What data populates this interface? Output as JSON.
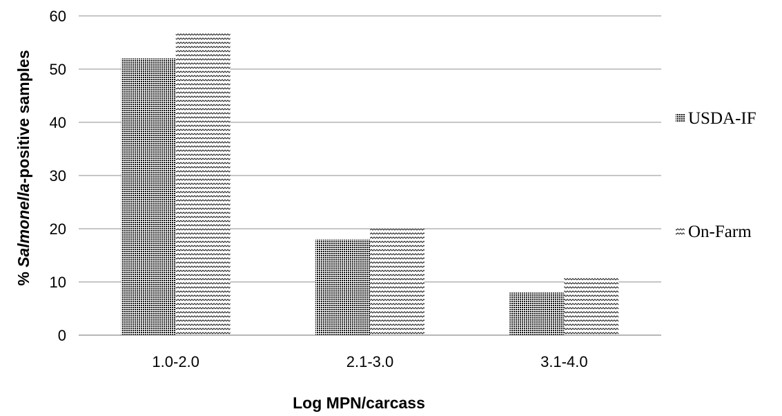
{
  "chart_data": {
    "type": "bar",
    "categories": [
      "1.0-2.0",
      "2.1-3.0",
      "3.1-4.0"
    ],
    "series": [
      {
        "name": "USDA-IF",
        "values": [
          52,
          18,
          8
        ],
        "pattern": "dots-dark"
      },
      {
        "name": "On-Farm",
        "values": [
          57,
          20,
          11
        ],
        "pattern": "zigzag"
      }
    ],
    "xlabel": "Log MPN/carcass",
    "ylabel": {
      "prefix": "% ",
      "italic": "Salmonella",
      "suffix": "-positive samples"
    },
    "ylim": [
      0,
      60
    ],
    "yticks": [
      0,
      10,
      20,
      30,
      40,
      50,
      60
    ],
    "grid": true,
    "legend_position": "right",
    "colors": {
      "bar_fill": "#000000",
      "grid": "#8c8c8c",
      "axis": "#8c8c8c"
    }
  }
}
